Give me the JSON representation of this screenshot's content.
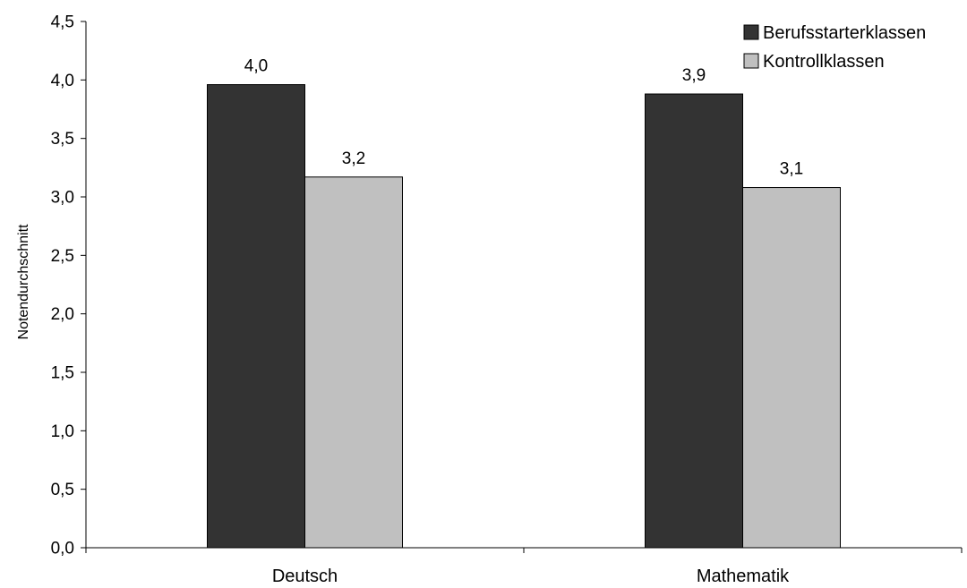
{
  "chart_data": {
    "type": "bar",
    "title": "",
    "xlabel": "",
    "ylabel": "Notendurchschnitt",
    "categories": [
      "Deutsch",
      "Mathematik"
    ],
    "series": [
      {
        "name": "Berufsstarterklassen",
        "color": "#333333",
        "values": [
          3.96,
          3.88
        ],
        "labels": [
          "4,0",
          "3,9"
        ]
      },
      {
        "name": "Kontrollklassen",
        "color": "#c0c0c0",
        "values": [
          3.17,
          3.08
        ],
        "labels": [
          "3,2",
          "3,1"
        ]
      }
    ],
    "ylim": [
      0,
      4.5
    ],
    "yticks": [
      0,
      0.5,
      1.0,
      1.5,
      2.0,
      2.5,
      3.0,
      3.5,
      4.0,
      4.5
    ],
    "ytick_labels": [
      "0,0",
      "0,5",
      "1,0",
      "1,5",
      "2,0",
      "2,5",
      "3,0",
      "3,5",
      "4,0",
      "4,5"
    ],
    "grid": false,
    "legend_position": "top-right"
  }
}
